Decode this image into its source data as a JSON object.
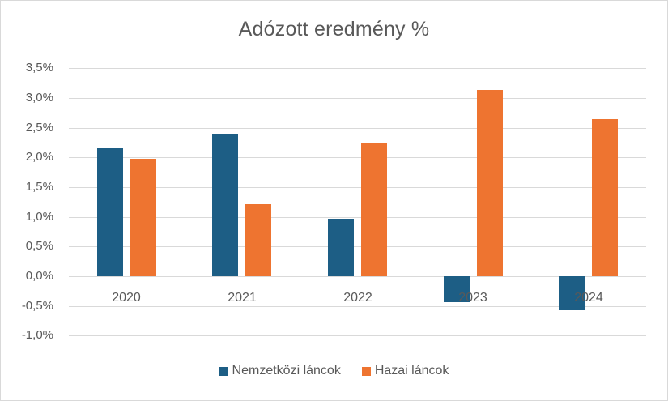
{
  "chart_data": {
    "type": "bar",
    "title": "Adózott eredmény %",
    "xlabel": "",
    "ylabel": "",
    "categories": [
      "2020",
      "2021",
      "2022",
      "2023",
      "2024"
    ],
    "series": [
      {
        "name": "Nemzetközi láncok",
        "color": "#1d5e85",
        "values": [
          2.15,
          2.38,
          0.97,
          -0.44,
          -0.57
        ]
      },
      {
        "name": "Hazai láncok",
        "color": "#ee7430",
        "values": [
          1.97,
          1.21,
          2.25,
          3.13,
          2.64
        ]
      }
    ],
    "ylim": [
      -1.0,
      3.5
    ],
    "yticks": [
      "3,5%",
      "3,0%",
      "2,5%",
      "2,0%",
      "1,5%",
      "1,0%",
      "0,5%",
      "0,0%",
      "-0,5%",
      "-1,0%"
    ],
    "ytick_values": [
      3.5,
      3.0,
      2.5,
      2.0,
      1.5,
      1.0,
      0.5,
      0.0,
      -0.5,
      -1.0
    ],
    "grid": true,
    "legend_position": "bottom"
  },
  "legend": {
    "items": [
      {
        "label": "Nemzetközi láncok",
        "color": "#1d5e85"
      },
      {
        "label": "Hazai láncok",
        "color": "#ee7430"
      }
    ]
  }
}
